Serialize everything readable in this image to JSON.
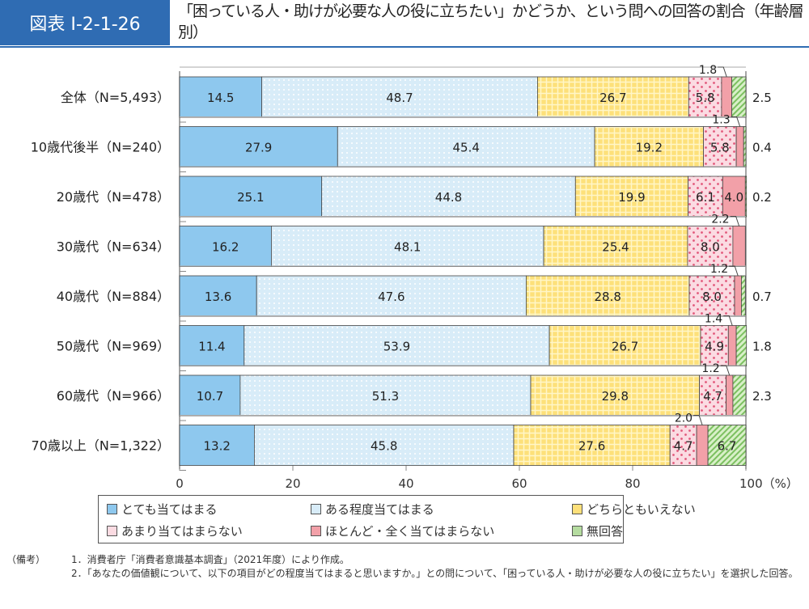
{
  "header": {
    "figure_id": "図表 I-2-1-26",
    "title": "「困っている人・助けが必要な人の役に立ちたい」かどうか、という問への回答の割合（年齢層別）"
  },
  "chart_data": {
    "type": "bar",
    "orientation": "horizontal",
    "stacked": true,
    "categories": [
      "全体（N=5,493）",
      "10歳代後半（N=240）",
      "20歳代（N=478）",
      "30歳代（N=634）",
      "40歳代（N=884）",
      "50歳代（N=969）",
      "60歳代（N=966）",
      "70歳以上（N=1,322）"
    ],
    "series": [
      {
        "name": "とても当てはまる",
        "color": "#8ec8ee",
        "pattern": "solid",
        "values": [
          14.5,
          27.9,
          25.1,
          16.2,
          13.6,
          11.4,
          10.7,
          13.2
        ]
      },
      {
        "name": "ある程度当てはまる",
        "color": "#d8ecf8",
        "pattern": "dots",
        "values": [
          48.7,
          45.4,
          44.8,
          48.1,
          47.6,
          53.9,
          51.3,
          45.8
        ]
      },
      {
        "name": "どちらともいえない",
        "color": "#fde07a",
        "pattern": "grid",
        "values": [
          26.7,
          19.2,
          19.9,
          25.4,
          28.8,
          26.7,
          29.8,
          27.6
        ]
      },
      {
        "name": "あまり当てはまらない",
        "color": "#fbdbe2",
        "pattern": "pink-dots",
        "values": [
          5.8,
          5.8,
          6.1,
          8.0,
          8.0,
          4.9,
          4.7,
          4.7
        ]
      },
      {
        "name": "ほとんど・全く当てはまらない",
        "color": "#f2a0a8",
        "pattern": "solid",
        "values": [
          1.8,
          1.3,
          4.0,
          2.2,
          1.2,
          1.4,
          1.2,
          2.0
        ]
      },
      {
        "name": "無回答",
        "color": "#b5dca0",
        "pattern": "stripes",
        "values": [
          2.5,
          0.4,
          0.2,
          null,
          0.7,
          1.8,
          2.3,
          6.7
        ]
      }
    ],
    "xlim": [
      0,
      100
    ],
    "xticks": [
      "0",
      "20",
      "40",
      "60",
      "80",
      "100（%）"
    ],
    "legend_position": "bottom"
  },
  "notes": {
    "label": "（備考）",
    "items": [
      "1．消費者庁「消費者意識基本調査」（2021年度）により作成。",
      "2．「あなたの価値観について、以下の項目がどの程度当てはまると思いますか。」との問について、「困っている人・助けが必要な人の役に立ちたい」を選択した回答。"
    ]
  }
}
